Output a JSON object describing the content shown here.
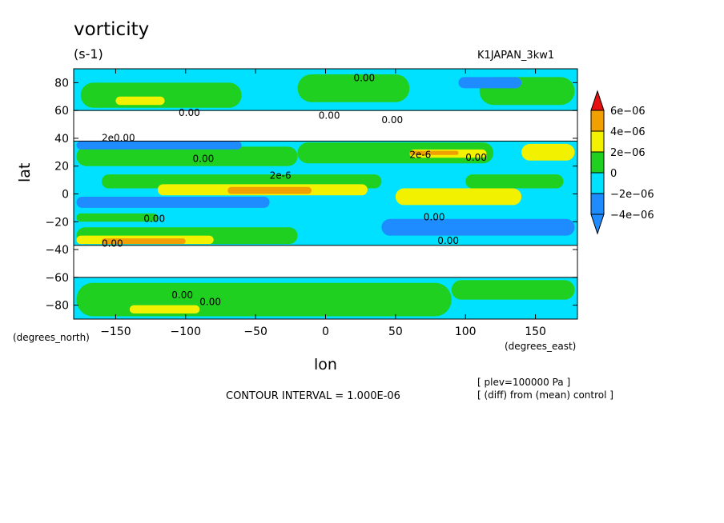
{
  "header": {
    "title": "vorticity",
    "units": "(s-1)",
    "run_name": "K1JAPAN_3kw1"
  },
  "footer": {
    "contour_interval": "CONTOUR INTERVAL = 1.000E-06",
    "note_plev": "[ plev=100000 Pa ]",
    "note_diff": "[ (diff) from (mean) control ]"
  },
  "colors": {
    "c_lt_neg4": "#1e8cff",
    "c_neg4_neg2": "#1e8cff",
    "c_neg2_0": "#00e1ff",
    "c_0_2": "#20d020",
    "c_2_4": "#f2f200",
    "c_4_6": "#f0a000",
    "c_gt_6": "#e61010",
    "missing": "#ffffff"
  },
  "chart_data": {
    "type": "heatmap",
    "title": "vorticity",
    "subtitle": "(s-1)",
    "xlabel": "lon",
    "ylabel": "lat",
    "x_unit_label": "(degrees_east)",
    "y_unit_label": "(degrees_north)",
    "xlim": [
      -180,
      180
    ],
    "ylim": [
      -90,
      90
    ],
    "x_ticks": [
      -150,
      -100,
      -50,
      0,
      50,
      100,
      150
    ],
    "x_tick_labels": [
      "−150",
      "−100",
      "−50",
      "0",
      "50",
      "100",
      "150"
    ],
    "y_ticks": [
      -80,
      -60,
      -40,
      -20,
      0,
      20,
      40,
      60,
      80
    ],
    "y_tick_labels": [
      "−80",
      "−60",
      "−40",
      "−20",
      "0",
      "20",
      "40",
      "60",
      "80"
    ],
    "colorbar": {
      "levels": [
        -4e-06,
        -2e-06,
        0,
        2e-06,
        4e-06,
        6e-06
      ],
      "labels": [
        "−4e−06",
        "−2e−06",
        "0",
        "2e−06",
        "4e−06",
        "6e−06"
      ]
    },
    "missing_bands_lat": [
      [
        -60,
        -37
      ],
      [
        38,
        60
      ]
    ],
    "background_class": "c_neg2_0",
    "features": [
      {
        "lon": [
          -175,
          -60
        ],
        "lat": [
          62,
          80
        ],
        "class": "c_0_2"
      },
      {
        "lon": [
          -20,
          60
        ],
        "lat": [
          66,
          86
        ],
        "class": "c_0_2"
      },
      {
        "lon": [
          110,
          178
        ],
        "lat": [
          64,
          84
        ],
        "class": "c_0_2"
      },
      {
        "lon": [
          -150,
          -115
        ],
        "lat": [
          64,
          70
        ],
        "class": "c_2_4"
      },
      {
        "lon": [
          95,
          140
        ],
        "lat": [
          76,
          84
        ],
        "class": "c_neg4_neg2"
      },
      {
        "lon": [
          -178,
          -20
        ],
        "lat": [
          20,
          34
        ],
        "class": "c_0_2"
      },
      {
        "lon": [
          -20,
          120
        ],
        "lat": [
          22,
          37
        ],
        "class": "c_0_2"
      },
      {
        "lon": [
          60,
          115
        ],
        "lat": [
          26,
          32
        ],
        "class": "c_2_4"
      },
      {
        "lon": [
          60,
          95
        ],
        "lat": [
          28,
          31
        ],
        "class": "c_4_6"
      },
      {
        "lon": [
          140,
          178
        ],
        "lat": [
          24,
          36
        ],
        "class": "c_2_4"
      },
      {
        "lon": [
          -178,
          -60
        ],
        "lat": [
          32,
          38
        ],
        "class": "c_neg4_neg2"
      },
      {
        "lon": [
          -160,
          40
        ],
        "lat": [
          4,
          14
        ],
        "class": "c_0_2"
      },
      {
        "lon": [
          -120,
          30
        ],
        "lat": [
          -1,
          7
        ],
        "class": "c_2_4"
      },
      {
        "lon": [
          -70,
          -10
        ],
        "lat": [
          0,
          5
        ],
        "class": "c_4_6"
      },
      {
        "lon": [
          100,
          170
        ],
        "lat": [
          4,
          14
        ],
        "class": "c_0_2"
      },
      {
        "lon": [
          50,
          140
        ],
        "lat": [
          -8,
          4
        ],
        "class": "c_2_4"
      },
      {
        "lon": [
          -178,
          -40
        ],
        "lat": [
          -10,
          -2
        ],
        "class": "c_neg4_neg2"
      },
      {
        "lon": [
          -178,
          -120
        ],
        "lat": [
          -20,
          -14
        ],
        "class": "c_0_2"
      },
      {
        "lon": [
          40,
          178
        ],
        "lat": [
          -30,
          -18
        ],
        "class": "c_neg4_neg2"
      },
      {
        "lon": [
          -178,
          -20
        ],
        "lat": [
          -36,
          -24
        ],
        "class": "c_0_2"
      },
      {
        "lon": [
          -178,
          -80
        ],
        "lat": [
          -36,
          -30
        ],
        "class": "c_2_4"
      },
      {
        "lon": [
          -160,
          -100
        ],
        "lat": [
          -36,
          -32
        ],
        "class": "c_4_6"
      },
      {
        "lon": [
          -178,
          90
        ],
        "lat": [
          -88,
          -64
        ],
        "class": "c_0_2"
      },
      {
        "lon": [
          90,
          178
        ],
        "lat": [
          -76,
          -62
        ],
        "class": "c_0_2"
      },
      {
        "lon": [
          -140,
          -90
        ],
        "lat": [
          -86,
          -80
        ],
        "class": "c_2_4"
      }
    ],
    "contour_labels": [
      {
        "lon": -105,
        "lat": 56,
        "text": "0.00"
      },
      {
        "lon": 40,
        "lat": 51,
        "text": "0.00"
      },
      {
        "lon": -5,
        "lat": 54,
        "text": "0.00"
      },
      {
        "lon": 20,
        "lat": 81,
        "text": "0.00"
      },
      {
        "lon": -160,
        "lat": 38,
        "text": "2e0.00"
      },
      {
        "lon": -95,
        "lat": 23,
        "text": "0.00"
      },
      {
        "lon": 100,
        "lat": 24,
        "text": "0.00"
      },
      {
        "lon": -40,
        "lat": 11,
        "text": "2e-6"
      },
      {
        "lon": 60,
        "lat": 26,
        "text": "2e-6"
      },
      {
        "lon": 70,
        "lat": -19,
        "text": "0.00"
      },
      {
        "lon": -130,
        "lat": -20,
        "text": "0.00"
      },
      {
        "lon": -160,
        "lat": -38,
        "text": "0.00"
      },
      {
        "lon": 80,
        "lat": -36,
        "text": "0.00"
      },
      {
        "lon": -110,
        "lat": -75,
        "text": "0.00"
      },
      {
        "lon": -90,
        "lat": -80,
        "text": "0.00"
      }
    ]
  }
}
